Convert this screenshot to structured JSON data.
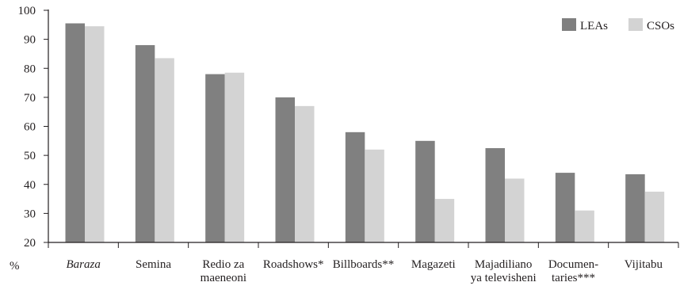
{
  "chart_data": {
    "type": "bar",
    "title": "",
    "xlabel": "",
    "ylabel": "%",
    "ylim": [
      20,
      100
    ],
    "yticks": [
      20,
      30,
      40,
      50,
      60,
      70,
      80,
      90,
      100
    ],
    "grid": false,
    "legend_position": "top-right",
    "categories": [
      [
        "Baraza"
      ],
      [
        "Semina"
      ],
      [
        "Redio za",
        "maeneoni"
      ],
      [
        "Roadshows*"
      ],
      [
        "Billboards**"
      ],
      [
        "Magazeti"
      ],
      [
        "Majadiliano",
        "ya televisheni"
      ],
      [
        "Documen-",
        "taries***"
      ],
      [
        "Vijitabu"
      ]
    ],
    "italic_categories": [
      0
    ],
    "series": [
      {
        "name": "LEAs",
        "color": "#808080",
        "values": [
          95.5,
          88,
          78,
          70,
          58,
          55,
          52.5,
          44,
          43.5
        ]
      },
      {
        "name": "CSOs",
        "color": "#d3d3d3",
        "values": [
          94.5,
          83.5,
          78.5,
          67,
          52,
          35,
          42,
          31,
          37.5
        ]
      }
    ]
  }
}
